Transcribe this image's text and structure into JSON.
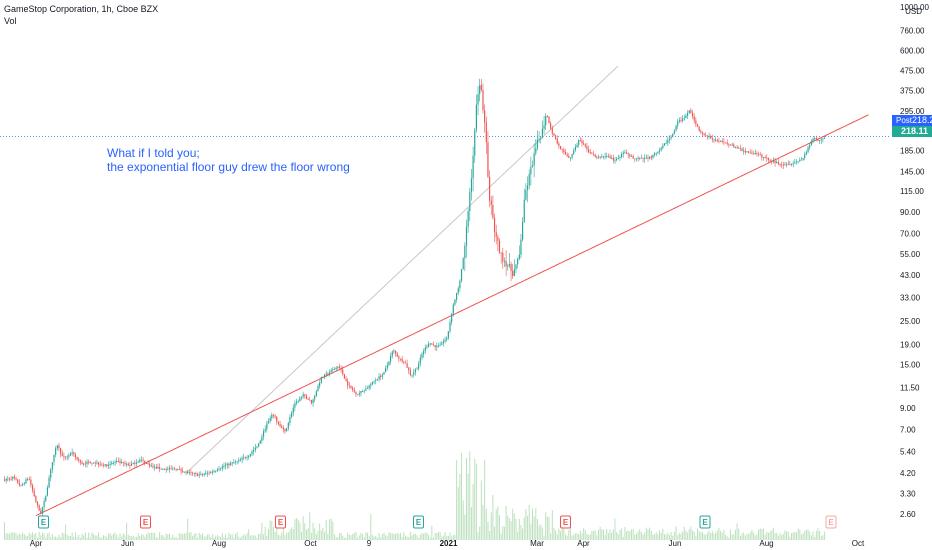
{
  "header": {
    "symbol": "GameStop Corporation, 1h, Cboe BZX",
    "indicator": "Vol"
  },
  "annotation": {
    "line1": "What if I told you;",
    "line2": "the exponential floor guy drew the floor wrong"
  },
  "price_scale": {
    "currency": "USD",
    "post_label": "Post",
    "post_price": "218.25",
    "last_price": "218.11"
  },
  "colors": {
    "up": "#26a69a",
    "down": "#ef5350",
    "red_curve": "#ef5350",
    "gray_curve": "#c8c8c8",
    "volume": "#a5d6a7",
    "earnings_green": "#26a69a",
    "earnings_red": "#ef5350"
  },
  "chart_data": {
    "type": "candlestick",
    "y_scale": "log",
    "y_ticks": [
      1000,
      760,
      600,
      475,
      375,
      295,
      185,
      145,
      115,
      90,
      70,
      55,
      43,
      33,
      25,
      19,
      15,
      11.5,
      9,
      7,
      5.4,
      4.2,
      3.3,
      2.6
    ],
    "y_tick_labels": [
      "1000.00",
      "760.00",
      "600.00",
      "475.00",
      "375.00",
      "295.00",
      "185.00",
      "145.00",
      "115.00",
      "90.00",
      "70.00",
      "55.00",
      "43.00",
      "33.00",
      "25.00",
      "19.00",
      "15.00",
      "11.50",
      "9.00",
      "7.00",
      "5.40",
      "4.20",
      "3.30",
      "2.60"
    ],
    "x_ticks": [
      {
        "label": "Apr",
        "t": 0
      },
      {
        "label": "Jun",
        "t": 61
      },
      {
        "label": "Aug",
        "t": 122
      },
      {
        "label": "Oct",
        "t": 183
      },
      {
        "label": "9",
        "t": 222
      },
      {
        "label": "2021",
        "t": 275
      },
      {
        "label": "Mar",
        "t": 334
      },
      {
        "label": "Apr",
        "t": 365
      },
      {
        "label": "Jun",
        "t": 426
      },
      {
        "label": "Aug",
        "t": 487
      },
      {
        "label": "Oct",
        "t": 548
      }
    ],
    "price_path": [
      [
        -21,
        3.9
      ],
      [
        -15,
        4.0
      ],
      [
        -10,
        3.6
      ],
      [
        -5,
        4.0
      ],
      [
        0,
        3.0
      ],
      [
        3,
        2.6
      ],
      [
        6,
        3.1
      ],
      [
        10,
        4.5
      ],
      [
        14,
        5.9
      ],
      [
        18,
        5.0
      ],
      [
        24,
        5.3
      ],
      [
        30,
        4.7
      ],
      [
        38,
        4.8
      ],
      [
        46,
        4.6
      ],
      [
        54,
        4.8
      ],
      [
        62,
        4.6
      ],
      [
        70,
        4.9
      ],
      [
        78,
        4.5
      ],
      [
        86,
        4.4
      ],
      [
        94,
        4.4
      ],
      [
        102,
        4.2
      ],
      [
        110,
        4.1
      ],
      [
        118,
        4.3
      ],
      [
        126,
        4.6
      ],
      [
        134,
        4.8
      ],
      [
        142,
        5.2
      ],
      [
        148,
        5.8
      ],
      [
        154,
        7.5
      ],
      [
        158,
        8.4
      ],
      [
        162,
        7.4
      ],
      [
        166,
        6.8
      ],
      [
        172,
        9.3
      ],
      [
        178,
        10.5
      ],
      [
        184,
        9.6
      ],
      [
        190,
        12.8
      ],
      [
        196,
        13.8
      ],
      [
        202,
        14.8
      ],
      [
        208,
        11.8
      ],
      [
        214,
        10.6
      ],
      [
        220,
        11.3
      ],
      [
        226,
        12.5
      ],
      [
        232,
        13.6
      ],
      [
        238,
        17.8
      ],
      [
        242,
        16.2
      ],
      [
        246,
        15.4
      ],
      [
        250,
        13.2
      ],
      [
        254,
        14.5
      ],
      [
        258,
        17.5
      ],
      [
        262,
        19.5
      ],
      [
        266,
        18.5
      ],
      [
        270,
        19.2
      ],
      [
        274,
        20.5
      ],
      [
        278,
        30
      ],
      [
        282,
        38
      ],
      [
        286,
        60
      ],
      [
        288,
        90
      ],
      [
        290,
        130
      ],
      [
        292,
        200
      ],
      [
        294,
        350
      ],
      [
        296,
        420
      ],
      [
        298,
        310
      ],
      [
        300,
        220
      ],
      [
        302,
        110
      ],
      [
        304,
        90
      ],
      [
        306,
        70
      ],
      [
        310,
        54
      ],
      [
        314,
        49
      ],
      [
        318,
        44
      ],
      [
        322,
        52
      ],
      [
        326,
        110
      ],
      [
        330,
        150
      ],
      [
        334,
        200
      ],
      [
        338,
        240
      ],
      [
        340,
        290
      ],
      [
        344,
        230
      ],
      [
        348,
        200
      ],
      [
        352,
        180
      ],
      [
        356,
        170
      ],
      [
        362,
        210
      ],
      [
        368,
        185
      ],
      [
        374,
        170
      ],
      [
        380,
        175
      ],
      [
        386,
        165
      ],
      [
        392,
        180
      ],
      [
        398,
        170
      ],
      [
        404,
        168
      ],
      [
        410,
        172
      ],
      [
        416,
        185
      ],
      [
        420,
        205
      ],
      [
        424,
        220
      ],
      [
        428,
        260
      ],
      [
        432,
        270
      ],
      [
        436,
        300
      ],
      [
        440,
        250
      ],
      [
        444,
        225
      ],
      [
        450,
        215
      ],
      [
        456,
        205
      ],
      [
        462,
        200
      ],
      [
        468,
        190
      ],
      [
        474,
        182
      ],
      [
        480,
        178
      ],
      [
        486,
        170
      ],
      [
        492,
        162
      ],
      [
        498,
        158
      ],
      [
        504,
        160
      ],
      [
        510,
        165
      ],
      [
        514,
        185
      ],
      [
        518,
        215
      ],
      [
        522,
        210
      ],
      [
        526,
        216
      ]
    ],
    "red_curve": {
      "t0": 0,
      "p0": 2.55,
      "t1": 523,
      "p1": 215,
      "t_end": 555
    },
    "gray_curve": {
      "t0": 100,
      "p0": 4.2,
      "t1": 388,
      "p1": 500
    },
    "horizontal_line_price": 218.25,
    "earnings_markers": [
      {
        "t": 5,
        "kind": "green"
      },
      {
        "t": 73,
        "kind": "red"
      },
      {
        "t": 163,
        "kind": "red"
      },
      {
        "t": 255,
        "kind": "green"
      },
      {
        "t": 353,
        "kind": "red"
      },
      {
        "t": 446,
        "kind": "green"
      },
      {
        "t": 530,
        "kind": "red-faded"
      }
    ],
    "earnings_label": "E"
  }
}
